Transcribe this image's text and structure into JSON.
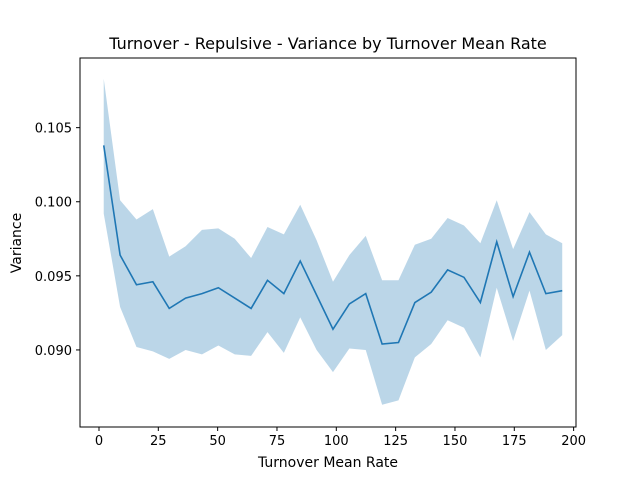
{
  "chart_data": {
    "type": "line",
    "title": "Turnover - Repulsive - Variance by Turnover Mean Rate",
    "xlabel": "Turnover Mean Rate",
    "ylabel": "Variance",
    "xlim": [
      -8,
      201
    ],
    "ylim": [
      0.0848,
      0.1097
    ],
    "xticks": [
      0,
      25,
      50,
      75,
      100,
      125,
      150,
      175,
      200
    ],
    "xtick_labels": [
      "0",
      "25",
      "50",
      "75",
      "100",
      "125",
      "150",
      "175",
      "200"
    ],
    "yticks": [
      0.09,
      0.095,
      0.1,
      0.105
    ],
    "ytick_labels": [
      "0.090",
      "0.095",
      "0.100",
      "0.105"
    ],
    "grid": false,
    "line_color": "#1f77b4",
    "band_color": "#1f77b4",
    "band_opacity": 0.3,
    "series": [
      {
        "x": [
          2,
          8.9,
          15.8,
          22.7,
          29.6,
          36.5,
          43.4,
          50.3,
          57.2,
          64.1,
          71.0,
          77.9,
          84.8,
          91.7,
          98.6,
          105.5,
          112.4,
          119.3,
          126.2,
          133.1,
          140.0,
          146.9,
          153.8,
          160.7,
          167.6,
          174.5,
          181.4,
          188.3,
          195.2
        ],
        "y": [
          0.1038,
          0.0964,
          0.0944,
          0.0946,
          0.0928,
          0.0935,
          0.0938,
          0.0942,
          0.0935,
          0.0928,
          0.0947,
          0.0938,
          0.096,
          0.0937,
          0.0914,
          0.0931,
          0.0938,
          0.0904,
          0.0905,
          0.0932,
          0.0939,
          0.0954,
          0.0949,
          0.0932,
          0.0973,
          0.0936,
          0.0966,
          0.0938,
          0.094
        ],
        "lower": [
          0.0992,
          0.0929,
          0.0902,
          0.0899,
          0.0894,
          0.09,
          0.0897,
          0.0903,
          0.0897,
          0.0896,
          0.0912,
          0.0898,
          0.0922,
          0.09,
          0.0885,
          0.0901,
          0.09,
          0.0863,
          0.0866,
          0.0895,
          0.0904,
          0.092,
          0.0915,
          0.0895,
          0.0942,
          0.0906,
          0.094,
          0.09,
          0.091
        ],
        "upper": [
          0.1083,
          0.1001,
          0.0988,
          0.0995,
          0.0963,
          0.097,
          0.0981,
          0.0982,
          0.0975,
          0.0962,
          0.0983,
          0.0978,
          0.0998,
          0.0974,
          0.0946,
          0.0964,
          0.0977,
          0.0947,
          0.0947,
          0.0971,
          0.0975,
          0.0989,
          0.0984,
          0.0972,
          0.1001,
          0.0968,
          0.0993,
          0.0978,
          0.0972
        ]
      }
    ]
  }
}
